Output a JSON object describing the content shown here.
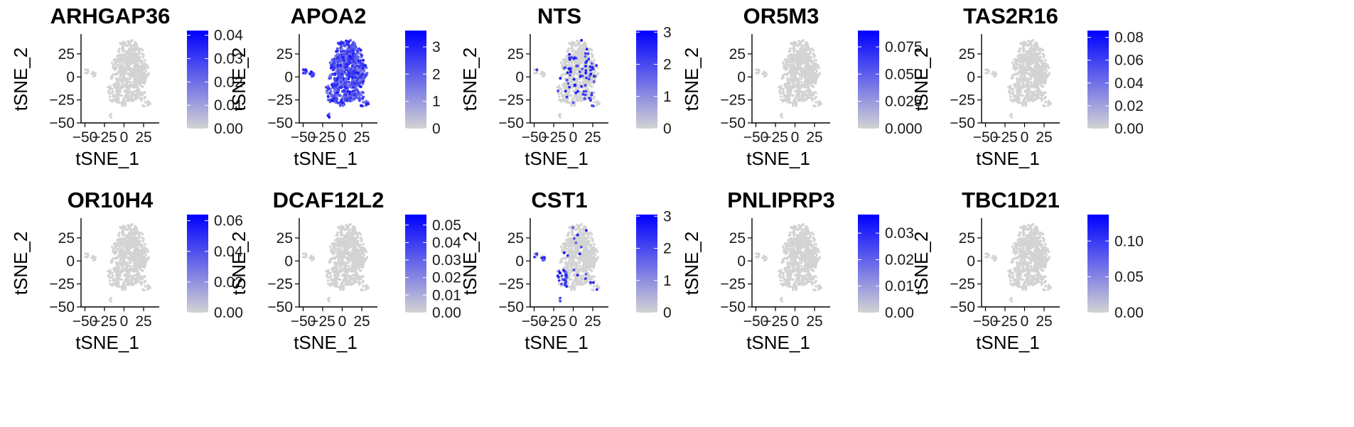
{
  "figure": {
    "description_label": "tSNE feature plots"
  },
  "colors": {
    "low": "#d3d3d3",
    "high": "#0000ff",
    "cells": "#d3d3d3",
    "axis": "#000000"
  },
  "chart_data": [
    {
      "type": "scatter",
      "title": "ARHGAP36",
      "xlabel": "tSNE_1",
      "ylabel": "tSNE_2",
      "xlim": [
        -55,
        45
      ],
      "ylim": [
        -50,
        45
      ],
      "xticks": [
        -50,
        -25,
        0,
        25
      ],
      "xtick_labels": [
        "−50",
        "−25",
        "0",
        "25"
      ],
      "yticks": [
        -50,
        -25,
        0,
        25
      ],
      "ytick_labels": [
        "−50",
        "−25",
        "0",
        "25"
      ],
      "legend": {
        "min": 0,
        "max": 0.042,
        "ticks": [
          0,
          0.01,
          0.02,
          0.03,
          0.04
        ],
        "tick_labels": [
          "0.00",
          "0.01",
          "0.02",
          "0.03",
          "0.04"
        ]
      },
      "expression_pattern": "none"
    },
    {
      "type": "scatter",
      "title": "APOA2",
      "xlabel": "tSNE_1",
      "ylabel": "tSNE_2",
      "xlim": [
        -55,
        45
      ],
      "ylim": [
        -50,
        45
      ],
      "xticks": [
        -50,
        -25,
        0,
        25
      ],
      "xtick_labels": [
        "−50",
        "−25",
        "0",
        "25"
      ],
      "yticks": [
        -50,
        -25,
        0,
        25
      ],
      "ytick_labels": [
        "−50",
        "−25",
        "0",
        "25"
      ],
      "legend": {
        "min": 0,
        "max": 3.6,
        "ticks": [
          0,
          1,
          2,
          3
        ],
        "tick_labels": [
          "0",
          "1",
          "2",
          "3"
        ]
      },
      "expression_pattern": "broad"
    },
    {
      "type": "scatter",
      "title": "NTS",
      "xlabel": "tSNE_1",
      "ylabel": "tSNE_2",
      "xlim": [
        -55,
        45
      ],
      "ylim": [
        -50,
        45
      ],
      "xticks": [
        -50,
        -25,
        0,
        25
      ],
      "xtick_labels": [
        "−50",
        "−25",
        "0",
        "25"
      ],
      "yticks": [
        -50,
        -25,
        0,
        25
      ],
      "ytick_labels": [
        "−50",
        "−25",
        "0",
        "25"
      ],
      "legend": {
        "min": 0,
        "max": 3.05,
        "ticks": [
          0,
          1,
          2,
          3
        ],
        "tick_labels": [
          "0",
          "1",
          "2",
          "3"
        ]
      },
      "expression_pattern": "sparse"
    },
    {
      "type": "scatter",
      "title": "OR5M3",
      "xlabel": "tSNE_1",
      "ylabel": "tSNE_2",
      "xlim": [
        -55,
        45
      ],
      "ylim": [
        -50,
        45
      ],
      "xticks": [
        -50,
        -25,
        0,
        25
      ],
      "xtick_labels": [
        "−50",
        "−25",
        "0",
        "25"
      ],
      "yticks": [
        -50,
        -25,
        0,
        25
      ],
      "ytick_labels": [
        "−50",
        "−25",
        "0",
        "25"
      ],
      "legend": {
        "min": 0,
        "max": 0.09,
        "ticks": [
          0,
          0.025,
          0.05,
          0.075
        ],
        "tick_labels": [
          "0.000",
          "0.025",
          "0.050",
          "0.075"
        ]
      },
      "expression_pattern": "none"
    },
    {
      "type": "scatter",
      "title": "TAS2R16",
      "xlabel": "tSNE_1",
      "ylabel": "tSNE_2",
      "xlim": [
        -55,
        45
      ],
      "ylim": [
        -50,
        45
      ],
      "xticks": [
        -50,
        -25,
        0,
        25
      ],
      "xtick_labels": [
        "−50",
        "−25",
        "0",
        "25"
      ],
      "yticks": [
        -50,
        -25,
        0,
        25
      ],
      "ytick_labels": [
        "−50",
        "−25",
        "0",
        "25"
      ],
      "legend": {
        "min": 0,
        "max": 0.086,
        "ticks": [
          0,
          0.02,
          0.04,
          0.06,
          0.08
        ],
        "tick_labels": [
          "0.00",
          "0.02",
          "0.04",
          "0.06",
          "0.08"
        ]
      },
      "expression_pattern": "none"
    },
    {
      "type": "scatter",
      "title": "OR10H4",
      "xlabel": "tSNE_1",
      "ylabel": "tSNE_2",
      "xlim": [
        -55,
        45
      ],
      "ylim": [
        -50,
        45
      ],
      "xticks": [
        -50,
        -25,
        0,
        25
      ],
      "xtick_labels": [
        "−50",
        "−25",
        "0",
        "25"
      ],
      "yticks": [
        -50,
        -25,
        0,
        25
      ],
      "ytick_labels": [
        "−50",
        "−25",
        "0",
        "25"
      ],
      "legend": {
        "min": 0,
        "max": 0.064,
        "ticks": [
          0,
          0.02,
          0.04,
          0.06
        ],
        "tick_labels": [
          "0.00",
          "0.02",
          "0.04",
          "0.06"
        ]
      },
      "expression_pattern": "none"
    },
    {
      "type": "scatter",
      "title": "DCAF12L2",
      "xlabel": "tSNE_1",
      "ylabel": "tSNE_2",
      "xlim": [
        -55,
        45
      ],
      "ylim": [
        -50,
        45
      ],
      "xticks": [
        -50,
        -25,
        0,
        25
      ],
      "xtick_labels": [
        "−50",
        "−25",
        "0",
        "25"
      ],
      "yticks": [
        -50,
        -25,
        0,
        25
      ],
      "ytick_labels": [
        "−50",
        "−25",
        "0",
        "25"
      ],
      "legend": {
        "min": 0,
        "max": 0.056,
        "ticks": [
          0,
          0.01,
          0.02,
          0.03,
          0.04,
          0.05
        ],
        "tick_labels": [
          "0.00",
          "0.01",
          "0.02",
          "0.03",
          "0.04",
          "0.05"
        ]
      },
      "expression_pattern": "none"
    },
    {
      "type": "scatter",
      "title": "CST1",
      "xlabel": "tSNE_1",
      "ylabel": "tSNE_2",
      "xlim": [
        -55,
        45
      ],
      "ylim": [
        -50,
        45
      ],
      "xticks": [
        -50,
        -25,
        0,
        25
      ],
      "xtick_labels": [
        "−50",
        "−25",
        "0",
        "25"
      ],
      "yticks": [
        -50,
        -25,
        0,
        25
      ],
      "ytick_labels": [
        "−50",
        "−25",
        "0",
        "25"
      ],
      "legend": {
        "min": 0,
        "max": 3.05,
        "ticks": [
          0,
          1,
          2,
          3
        ],
        "tick_labels": [
          "0",
          "1",
          "2",
          "3"
        ]
      },
      "expression_pattern": "left_clusters"
    },
    {
      "type": "scatter",
      "title": "PNLIPRP3",
      "xlabel": "tSNE_1",
      "ylabel": "tSNE_2",
      "xlim": [
        -55,
        45
      ],
      "ylim": [
        -50,
        45
      ],
      "xticks": [
        -50,
        -25,
        0,
        25
      ],
      "xtick_labels": [
        "−50",
        "−25",
        "0",
        "25"
      ],
      "yticks": [
        -50,
        -25,
        0,
        25
      ],
      "ytick_labels": [
        "−50",
        "−25",
        "0",
        "25"
      ],
      "legend": {
        "min": 0,
        "max": 0.037,
        "ticks": [
          0,
          0.01,
          0.02,
          0.03
        ],
        "tick_labels": [
          "0.00",
          "0.01",
          "0.02",
          "0.03"
        ]
      },
      "expression_pattern": "none"
    },
    {
      "type": "scatter",
      "title": "TBC1D21",
      "xlabel": "tSNE_1",
      "ylabel": "tSNE_2",
      "xlim": [
        -55,
        45
      ],
      "ylim": [
        -50,
        45
      ],
      "xticks": [
        -50,
        -25,
        0,
        25
      ],
      "xtick_labels": [
        "−50",
        "−25",
        "0",
        "25"
      ],
      "yticks": [
        -50,
        -25,
        0,
        25
      ],
      "ytick_labels": [
        "−50",
        "−25",
        "0",
        "25"
      ],
      "legend": {
        "min": 0,
        "max": 0.137,
        "ticks": [
          0,
          0.05,
          0.1
        ],
        "tick_labels": [
          "0.00",
          "0.05",
          "0.10"
        ]
      },
      "expression_pattern": "none"
    }
  ]
}
